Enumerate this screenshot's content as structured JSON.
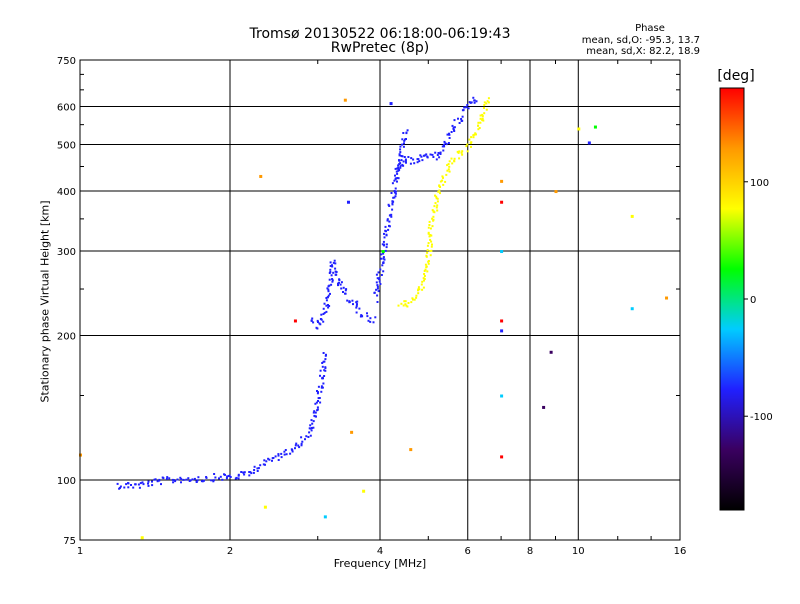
{
  "chart_data": {
    "type": "scatter",
    "title": "Tromsø 20130522 06:18:00-06:19:43",
    "subtitle": "RwPretec (8p)",
    "xlabel": "Frequency [MHz]",
    "ylabel": "Stationary phase Virtual Height [km]",
    "x_scale": "log",
    "y_scale": "log",
    "xlim": [
      1,
      16
    ],
    "ylim": [
      75,
      750
    ],
    "x_ticks": [
      1,
      2,
      4,
      6,
      8,
      10,
      16
    ],
    "y_ticks": [
      75,
      100,
      200,
      300,
      400,
      500,
      600,
      750
    ],
    "grid": true,
    "stats": {
      "heading": "Phase",
      "line_o": "mean, sd,O: -95.3, 13.7",
      "line_x": "mean, sd,X:  82.2, 18.9"
    },
    "colorbar": {
      "label": "[deg]",
      "ticks": [
        100,
        0,
        -100
      ],
      "range": [
        -180,
        180
      ],
      "colors": [
        "#000000",
        "#3a0060",
        "#2020ff",
        "#00ccff",
        "#00ff00",
        "#ffff00",
        "#ff9900",
        "#ff0000"
      ]
    },
    "series": [
      {
        "color": "#2020ff",
        "segments": [
          {
            "x": [
              1.18,
              1.3,
              1.45,
              1.6,
              1.75,
              1.9,
              2.0,
              2.15,
              2.3,
              2.5,
              2.7,
              2.9,
              3.0,
              3.1
            ],
            "y": [
              98,
              98,
              100,
              101,
              101,
              102,
              102,
              103,
              108,
              113,
              118,
              127,
              150,
              185
            ]
          },
          {
            "x": [
              2.9,
              3.0,
              3.1,
              3.2,
              3.25,
              3.35,
              3.45,
              3.55,
              3.6,
              3.75,
              3.9
            ],
            "y": [
              215,
              210,
              225,
              285,
              265,
              250,
              240,
              235,
              225,
              220,
              215
            ]
          },
          {
            "x": [
              3.9,
              4.0,
              4.1,
              4.2,
              4.3,
              4.4,
              4.5
            ],
            "y": [
              240,
              280,
              330,
              380,
              430,
              480,
              540
            ]
          },
          {
            "x": [
              4.3,
              4.5,
              4.7,
              4.9,
              5.1,
              5.3,
              5.5,
              5.7,
              5.9,
              6.1,
              6.3
            ],
            "y": [
              430,
              470,
              460,
              480,
              470,
              490,
              520,
              560,
              600,
              620,
              630
            ]
          }
        ]
      },
      {
        "color": "#ffff00",
        "segments": [
          {
            "x": [
              4.35,
              4.5,
              4.65,
              4.8,
              4.9,
              5.0,
              5.05,
              5.2,
              5.4,
              5.6,
              5.8,
              6.0,
              6.2,
              6.4,
              6.55
            ],
            "y": [
              235,
              232,
              240,
              250,
              270,
              300,
              340,
              400,
              440,
              470,
              480,
              500,
              530,
              580,
              630
            ]
          }
        ]
      }
    ],
    "scatter_points": [
      {
        "x": 1.0,
        "y": 113,
        "color": "#ff9900"
      },
      {
        "x": 1.33,
        "y": 76,
        "color": "#ffff00"
      },
      {
        "x": 2.3,
        "y": 430,
        "color": "#ff9900"
      },
      {
        "x": 2.35,
        "y": 88,
        "color": "#ffff00"
      },
      {
        "x": 2.7,
        "y": 215,
        "color": "#ff0000"
      },
      {
        "x": 3.1,
        "y": 84,
        "color": "#00ccff"
      },
      {
        "x": 3.4,
        "y": 620,
        "color": "#ff9900"
      },
      {
        "x": 3.45,
        "y": 380,
        "color": "#2020ff"
      },
      {
        "x": 3.5,
        "y": 126,
        "color": "#ff9900"
      },
      {
        "x": 3.7,
        "y": 95,
        "color": "#ffff00"
      },
      {
        "x": 4.05,
        "y": 300,
        "color": "#00ff00"
      },
      {
        "x": 4.2,
        "y": 610,
        "color": "#2020ff"
      },
      {
        "x": 4.6,
        "y": 116,
        "color": "#ff9900"
      },
      {
        "x": 7.0,
        "y": 420,
        "color": "#ff9900"
      },
      {
        "x": 7.0,
        "y": 380,
        "color": "#ff0000"
      },
      {
        "x": 7.0,
        "y": 300,
        "color": "#00ccff"
      },
      {
        "x": 7.0,
        "y": 215,
        "color": "#ff0000"
      },
      {
        "x": 7.0,
        "y": 205,
        "color": "#2020ff"
      },
      {
        "x": 7.0,
        "y": 150,
        "color": "#00ccff"
      },
      {
        "x": 7.0,
        "y": 112,
        "color": "#ff0000"
      },
      {
        "x": 8.5,
        "y": 142,
        "color": "#3a0060"
      },
      {
        "x": 8.8,
        "y": 185,
        "color": "#3a0060"
      },
      {
        "x": 9.0,
        "y": 400,
        "color": "#ff9900"
      },
      {
        "x": 10.0,
        "y": 540,
        "color": "#ffff00"
      },
      {
        "x": 10.5,
        "y": 505,
        "color": "#2020ff"
      },
      {
        "x": 10.8,
        "y": 545,
        "color": "#00ff00"
      },
      {
        "x": 12.8,
        "y": 355,
        "color": "#ffff00"
      },
      {
        "x": 12.8,
        "y": 228,
        "color": "#00ccff"
      },
      {
        "x": 15.0,
        "y": 240,
        "color": "#ff9900"
      }
    ]
  }
}
